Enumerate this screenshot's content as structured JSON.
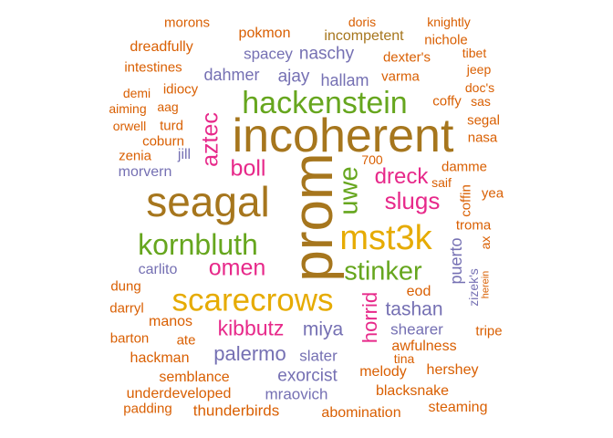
{
  "palette": {
    "orange": "#d95f02",
    "purple": "#7570b3",
    "magenta": "#e7298a",
    "green": "#66a61e",
    "gold": "#e6ab02",
    "brown": "#a6761d"
  },
  "words": [
    {
      "text": "prom",
      "color": "brown",
      "vertical": true
    },
    {
      "text": "incoherent",
      "color": "brown"
    },
    {
      "text": "seagal",
      "color": "brown"
    },
    {
      "text": "hackenstein",
      "color": "green"
    },
    {
      "text": "mst3k",
      "color": "gold"
    },
    {
      "text": "scarecrows",
      "color": "gold"
    },
    {
      "text": "kornbluth",
      "color": "green"
    },
    {
      "text": "stinker",
      "color": "green"
    },
    {
      "text": "uwe",
      "color": "green",
      "vertical": true
    },
    {
      "text": "slugs",
      "color": "magenta"
    },
    {
      "text": "omen",
      "color": "magenta"
    },
    {
      "text": "boll",
      "color": "magenta"
    },
    {
      "text": "dreck",
      "color": "magenta"
    },
    {
      "text": "aztec",
      "color": "magenta",
      "vertical": true
    },
    {
      "text": "kibbutz",
      "color": "magenta"
    },
    {
      "text": "horrid",
      "color": "magenta",
      "vertical": true
    },
    {
      "text": "palermo",
      "color": "purple"
    },
    {
      "text": "tashan",
      "color": "purple"
    },
    {
      "text": "miya",
      "color": "purple"
    },
    {
      "text": "naschy",
      "color": "purple"
    },
    {
      "text": "ajay",
      "color": "purple"
    },
    {
      "text": "exorcist",
      "color": "purple"
    },
    {
      "text": "dahmer",
      "color": "purple"
    },
    {
      "text": "hallam",
      "color": "purple"
    },
    {
      "text": "spacey",
      "color": "purple"
    },
    {
      "text": "puerto",
      "color": "purple",
      "vertical": true
    },
    {
      "text": "mraovich",
      "color": "purple"
    },
    {
      "text": "shearer",
      "color": "purple"
    },
    {
      "text": "slater",
      "color": "purple"
    },
    {
      "text": "carlito",
      "color": "purple"
    },
    {
      "text": "morvern",
      "color": "purple"
    },
    {
      "text": "jill",
      "color": "purple"
    },
    {
      "text": "incompetent",
      "color": "brown"
    },
    {
      "text": "zizek's",
      "color": "purple",
      "vertical": true
    },
    {
      "text": "pokmon",
      "color": "orange"
    },
    {
      "text": "dreadfully",
      "color": "orange"
    },
    {
      "text": "intestines",
      "color": "orange"
    },
    {
      "text": "idiocy",
      "color": "orange"
    },
    {
      "text": "morons",
      "color": "orange"
    },
    {
      "text": "nichole",
      "color": "orange"
    },
    {
      "text": "dexter's",
      "color": "orange"
    },
    {
      "text": "varma",
      "color": "orange"
    },
    {
      "text": "coffy",
      "color": "orange"
    },
    {
      "text": "segal",
      "color": "orange"
    },
    {
      "text": "nasa",
      "color": "orange"
    },
    {
      "text": "damme",
      "color": "orange"
    },
    {
      "text": "saif",
      "color": "orange"
    },
    {
      "text": "yea",
      "color": "orange"
    },
    {
      "text": "coffin",
      "color": "orange",
      "vertical": true
    },
    {
      "text": "troma",
      "color": "orange"
    },
    {
      "text": "ax",
      "color": "orange",
      "vertical": true
    },
    {
      "text": "coburn",
      "color": "orange"
    },
    {
      "text": "zenia",
      "color": "orange"
    },
    {
      "text": "orwell",
      "color": "orange"
    },
    {
      "text": "turd",
      "color": "orange"
    },
    {
      "text": "aiming",
      "color": "orange"
    },
    {
      "text": "aag",
      "color": "orange"
    },
    {
      "text": "demi",
      "color": "orange"
    },
    {
      "text": "700",
      "color": "orange"
    },
    {
      "text": "doris",
      "color": "orange"
    },
    {
      "text": "knightly",
      "color": "orange"
    },
    {
      "text": "tibet",
      "color": "orange"
    },
    {
      "text": "jeep",
      "color": "orange"
    },
    {
      "text": "doc's",
      "color": "orange"
    },
    {
      "text": "sas",
      "color": "orange"
    },
    {
      "text": "dung",
      "color": "orange"
    },
    {
      "text": "darryl",
      "color": "orange"
    },
    {
      "text": "manos",
      "color": "orange"
    },
    {
      "text": "barton",
      "color": "orange"
    },
    {
      "text": "ate",
      "color": "orange"
    },
    {
      "text": "hackman",
      "color": "orange"
    },
    {
      "text": "semblance",
      "color": "orange"
    },
    {
      "text": "underdeveloped",
      "color": "orange"
    },
    {
      "text": "padding",
      "color": "orange"
    },
    {
      "text": "thunderbirds",
      "color": "orange"
    },
    {
      "text": "abomination",
      "color": "orange"
    },
    {
      "text": "steaming",
      "color": "orange"
    },
    {
      "text": "blacksnake",
      "color": "orange"
    },
    {
      "text": "hershey",
      "color": "orange"
    },
    {
      "text": "melody",
      "color": "orange"
    },
    {
      "text": "tina",
      "color": "orange"
    },
    {
      "text": "awfulness",
      "color": "orange"
    },
    {
      "text": "eod",
      "color": "orange"
    },
    {
      "text": "tripe",
      "color": "orange"
    },
    {
      "text": "herein",
      "color": "orange",
      "vertical": true
    }
  ]
}
